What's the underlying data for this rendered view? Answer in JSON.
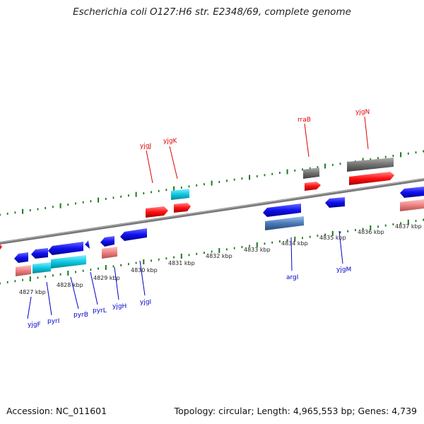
{
  "title": "Escherichia coli O127:H6 str. E2348/69, complete genome",
  "footer": {
    "accession": "Accession: NC_011601",
    "topology": "Topology: circular; Length: 4,965,553 bp; Genes: 4,739"
  },
  "kbp_labels": [
    "4827 kbp",
    "4828 kbp",
    "4829 kbp",
    "4830 kbp",
    "4831 kbp",
    "4832 kbp",
    "4833 kbp",
    "4834 kbp",
    "4835 kbp",
    "4836 kbp",
    "4837 kbp"
  ],
  "colors": {
    "forward_gene": "#ff0000",
    "reverse_gene": "#0000ff",
    "forward_rna": "#ff8080",
    "reverse_cyan": "#00c8d8",
    "reverse_steel": "#4a7ab8",
    "grey_gene": "#666666",
    "tick": "#1a7a1a",
    "backbone": "#808080"
  },
  "forward_labels": [
    "yjgJ",
    "yjgK",
    "rraB",
    "yjgN"
  ],
  "reverse_labels": [
    "yjgF",
    "pyrI",
    "pyrB",
    "pyrL",
    "yjgH",
    "yjgI",
    "argI",
    "yjgM"
  ]
}
